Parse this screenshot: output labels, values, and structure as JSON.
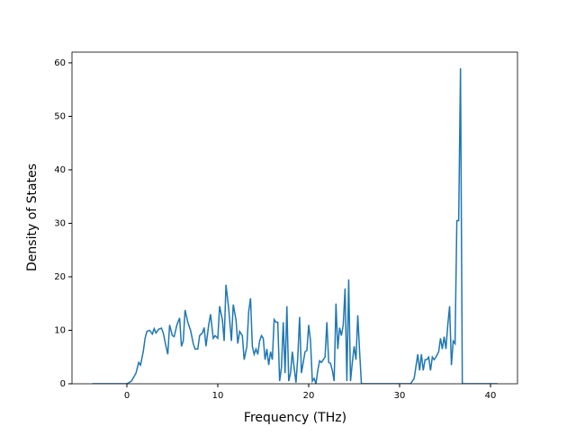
{
  "chart_data": {
    "type": "line",
    "xlabel": "Frequency (THz)",
    "ylabel": "Density of States",
    "x": [
      -3.8,
      0,
      0.5,
      1,
      1.3,
      1.5,
      1.8,
      2,
      2.2,
      2.5,
      2.8,
      3,
      3.2,
      3.5,
      3.8,
      4,
      4.3,
      4.5,
      4.7,
      5,
      5.2,
      5.5,
      5.8,
      6,
      6.2,
      6.4,
      6.7,
      7,
      7.3,
      7.5,
      7.8,
      8,
      8.3,
      8.5,
      8.7,
      9,
      9.2,
      9.5,
      9.7,
      10,
      10.2,
      10.5,
      10.7,
      10.9,
      11.2,
      11.5,
      11.7,
      12,
      12.2,
      12.4,
      12.7,
      12.9,
      13.2,
      13.4,
      13.6,
      13.8,
      14,
      14.2,
      14.4,
      14.6,
      14.8,
      15,
      15.2,
      15.4,
      15.6,
      15.8,
      16,
      16.2,
      16.4,
      16.6,
      16.8,
      17,
      17.2,
      17.4,
      17.6,
      17.8,
      18,
      18.2,
      18.4,
      18.6,
      18.8,
      19,
      19.2,
      19.4,
      19.6,
      19.8,
      20,
      20.2,
      20.4,
      20.6,
      20.8,
      21,
      21.2,
      21.4,
      21.6,
      21.8,
      22,
      22.2,
      22.4,
      22.6,
      22.8,
      23,
      23.2,
      23.4,
      23.6,
      23.8,
      24,
      24.2,
      24.4,
      24.6,
      24.8,
      25,
      25.2,
      25.4,
      25.6,
      25.8,
      31.2,
      31.6,
      32,
      32.2,
      32.4,
      32.6,
      32.8,
      33,
      33.2,
      33.4,
      33.6,
      33.8,
      34,
      34.3,
      34.5,
      34.7,
      34.9,
      35.1,
      35.3,
      35.5,
      35.7,
      35.9,
      36.1,
      36.3,
      36.5,
      36.7,
      36.9,
      37.1,
      40.8
    ],
    "series": [
      {
        "color": "#1f77b4",
        "values": [
          0,
          0,
          0.5,
          2,
          4,
          3.5,
          6,
          8.5,
          9.8,
          10,
          9.3,
          10.3,
          9.5,
          10.2,
          10.4,
          9.5,
          7,
          5.5,
          11,
          9,
          8.8,
          11,
          12.3,
          7,
          8,
          13.8,
          11.5,
          10,
          7.5,
          6.5,
          6.5,
          9,
          9.5,
          10.5,
          7,
          11,
          13,
          8.5,
          9,
          8.5,
          14.5,
          12,
          8,
          18.5,
          14,
          8,
          14.8,
          12,
          7.5,
          9.8,
          9,
          4.5,
          7,
          13.5,
          16,
          7,
          5.5,
          6.5,
          5.5,
          8,
          9,
          8.5,
          4.5,
          6.5,
          3.5,
          6,
          4.5,
          12,
          11.5,
          11.5,
          0.5,
          3,
          11.5,
          2,
          14.5,
          0.5,
          2,
          6,
          3,
          0.2,
          5,
          12.5,
          2,
          4,
          6,
          6.2,
          11,
          8,
          0.5,
          1,
          0,
          2.5,
          4.3,
          4,
          4.5,
          5,
          11.5,
          4,
          3.8,
          2.5,
          0.5,
          15,
          6.5,
          10.5,
          9,
          11,
          17.8,
          0.5,
          19.5,
          0.5,
          4,
          7,
          4.5,
          12.8,
          6,
          0,
          0,
          1,
          5.5,
          2.5,
          5.5,
          2.5,
          4.5,
          4.5,
          5,
          2.5,
          5,
          4.5,
          5,
          6,
          8.5,
          6.5,
          8.8,
          6.5,
          11,
          14.5,
          3.5,
          8,
          7.5,
          30.5,
          30.5,
          59,
          0,
          0,
          0
        ]
      }
    ],
    "xlim": [
      -6.04,
      42.97
    ],
    "ylim": [
      0,
      62
    ],
    "xticks": [
      0,
      10,
      20,
      30,
      40
    ],
    "yticks": [
      0,
      10,
      20,
      30,
      40,
      50,
      60
    ]
  }
}
